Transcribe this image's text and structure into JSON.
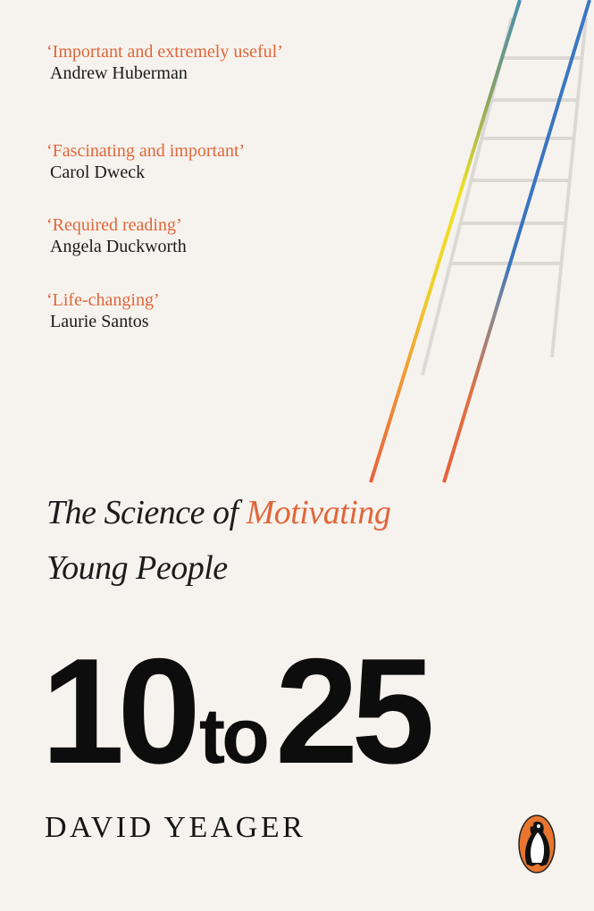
{
  "blurbs": [
    {
      "quote": "‘Important and extremely useful’",
      "author": "Andrew Huberman"
    },
    {
      "quote": "‘Fascinating and important’",
      "author": "Carol Dweck"
    },
    {
      "quote": "‘Required reading’",
      "author": "Angela Duckworth"
    },
    {
      "quote": "‘Life-changing’",
      "author": "Laurie Santos"
    }
  ],
  "subtitle": {
    "line1_a": "The Science of ",
    "line1_highlight": "Motivating",
    "line2": "Young People"
  },
  "title": {
    "a": "10",
    "b": "to",
    "c": "25"
  },
  "author": "DAVID YEAGER",
  "publisher_logo": "penguin-logo",
  "colors": {
    "accent": "#e0663a",
    "text": "#1a1a1a",
    "background": "#f6f3ee"
  }
}
